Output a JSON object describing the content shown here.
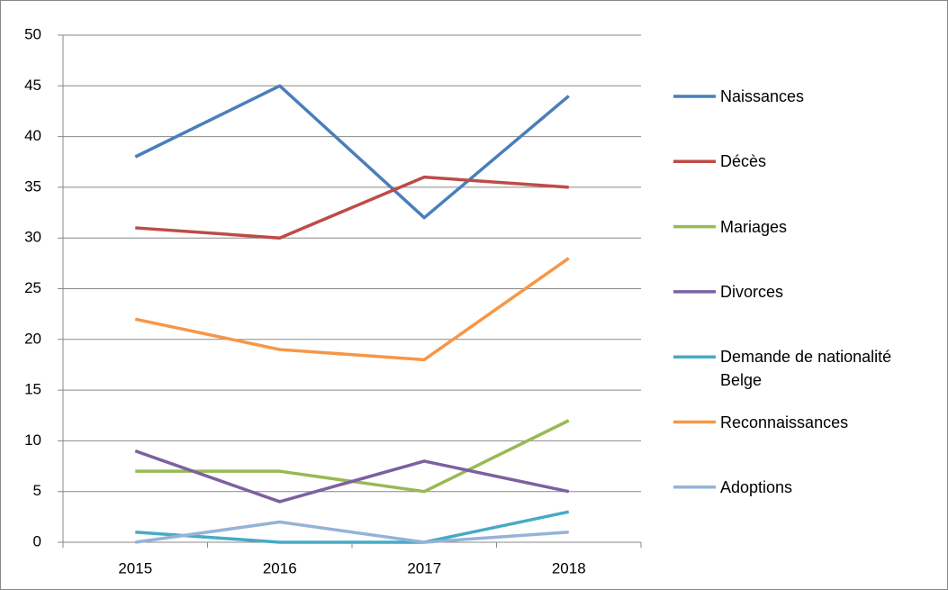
{
  "chart_data": {
    "type": "line",
    "categories": [
      "2015",
      "2016",
      "2017",
      "2018"
    ],
    "series": [
      {
        "name": "Naissances",
        "color": "#4a7ebb",
        "values": [
          38,
          45,
          32,
          44
        ]
      },
      {
        "name": "Décès",
        "color": "#be4b48",
        "values": [
          31,
          30,
          36,
          35
        ]
      },
      {
        "name": "Mariages",
        "color": "#98b954",
        "values": [
          7,
          7,
          5,
          12
        ]
      },
      {
        "name": "Divorces",
        "color": "#7d60a0",
        "values": [
          9,
          4,
          8,
          5
        ]
      },
      {
        "name": "Demande de nationalité Belge",
        "color": "#46aac5",
        "values": [
          1,
          0,
          0,
          3
        ]
      },
      {
        "name": "Reconnaissances",
        "color": "#f79646",
        "values": [
          22,
          19,
          18,
          28
        ]
      },
      {
        "name": "Adoptions",
        "color": "#95b3d7",
        "values": [
          0,
          2,
          0,
          1
        ]
      }
    ],
    "ylim": [
      0,
      50
    ],
    "yticks": [
      0,
      5,
      10,
      15,
      20,
      25,
      30,
      35,
      40,
      45,
      50
    ],
    "grid": true,
    "legend": "right"
  }
}
